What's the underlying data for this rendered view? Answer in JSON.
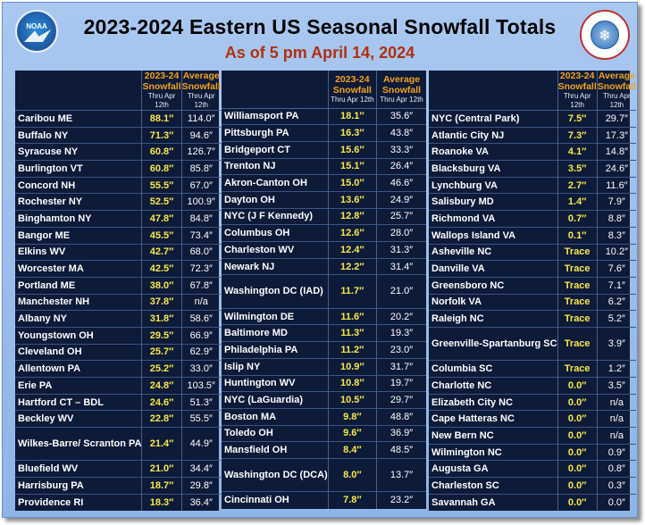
{
  "header": {
    "title": "2023-2024 Eastern US Seasonal Snowfall Totals",
    "subtitle": "As of 5 pm April 14, 2024",
    "logo_left_text": "NOAA",
    "logo_right_text": "National Weather Service"
  },
  "columns_header": {
    "current_l1": "2023-24",
    "current_l2": "Snowfall",
    "current_note": "Thru Apr 12th",
    "avg_l1": "Average",
    "avg_l2": "Snowfall",
    "avg_note": "Thru Apr 12th"
  },
  "table1": [
    {
      "city": "Caribou ME",
      "cur": "88.1″",
      "avg": "114.0″"
    },
    {
      "city": "Buffalo NY",
      "cur": "71.3″",
      "avg": "94.6″"
    },
    {
      "city": "Syracuse NY",
      "cur": "60.8″",
      "avg": "126.7″"
    },
    {
      "city": "Burlington VT",
      "cur": "60.8″",
      "avg": "85.8″"
    },
    {
      "city": "Concord NH",
      "cur": "55.5″",
      "avg": "67.0″"
    },
    {
      "city": "Rochester NY",
      "cur": "52.5″",
      "avg": "100.9″"
    },
    {
      "city": "Binghamton NY",
      "cur": "47.8″",
      "avg": "84.8″"
    },
    {
      "city": "Bangor ME",
      "cur": "45.5″",
      "avg": "73.4″"
    },
    {
      "city": "Elkins WV",
      "cur": "42.7″",
      "avg": "68.0″"
    },
    {
      "city": "Worcester MA",
      "cur": "42.5″",
      "avg": "72.3″"
    },
    {
      "city": "Portland ME",
      "cur": "38.0″",
      "avg": "67.8″"
    },
    {
      "city": "Manchester NH",
      "cur": "37.8″",
      "avg": "n/a"
    },
    {
      "city": "Albany NY",
      "cur": "31.8″",
      "avg": "58.6″"
    },
    {
      "city": "Youngstown OH",
      "cur": "29.5″",
      "avg": "66.9″"
    },
    {
      "city": "Cleveland OH",
      "cur": "25.7″",
      "avg": "62.9″"
    },
    {
      "city": "Allentown PA",
      "cur": "25.2″",
      "avg": "33.0″"
    },
    {
      "city": "Erie PA",
      "cur": "24.8″",
      "avg": "103.5″"
    },
    {
      "city": "Hartford CT – BDL",
      "cur": "24.6″",
      "avg": "51.3″"
    },
    {
      "city": "Beckley WV",
      "cur": "22.8″",
      "avg": "55.5″"
    },
    {
      "city": "Wilkes-Barre/ Scranton PA",
      "cur": "21.4″",
      "avg": "44.9″",
      "two": true
    },
    {
      "city": "Bluefield WV",
      "cur": "21.0″",
      "avg": "34.4″"
    },
    {
      "city": "Harrisburg PA",
      "cur": "18.7″",
      "avg": "29.8″"
    },
    {
      "city": "Providence RI",
      "cur": "18.3″",
      "avg": "36.4″"
    }
  ],
  "table2": [
    {
      "city": "Williamsport PA",
      "cur": "18.1″",
      "avg": "35.6″"
    },
    {
      "city": "Pittsburgh PA",
      "cur": "16.3″",
      "avg": "43.8″"
    },
    {
      "city": "Bridgeport CT",
      "cur": "15.6″",
      "avg": "33.3″"
    },
    {
      "city": "Trenton NJ",
      "cur": "15.1″",
      "avg": "26.4″"
    },
    {
      "city": "Akron-Canton OH",
      "cur": "15.0″",
      "avg": "46.6″"
    },
    {
      "city": "Dayton OH",
      "cur": "13.6″",
      "avg": "24.9″"
    },
    {
      "city": "NYC (J F Kennedy)",
      "cur": "12.8″",
      "avg": "25.7″"
    },
    {
      "city": "Columbus OH",
      "cur": "12.6″",
      "avg": "28.0″"
    },
    {
      "city": "Charleston WV",
      "cur": "12.4″",
      "avg": "31.3″"
    },
    {
      "city": "Newark NJ",
      "cur": "12.2″",
      "avg": "31.4″"
    },
    {
      "city": "Washington DC (IAD)",
      "cur": "11.7″",
      "avg": "21.0″",
      "two": true
    },
    {
      "city": "Wilmington DE",
      "cur": "11.6″",
      "avg": "20.2″"
    },
    {
      "city": "Baltimore MD",
      "cur": "11.3″",
      "avg": "19.3″"
    },
    {
      "city": "Philadelphia PA",
      "cur": "11.2″",
      "avg": "23.0″"
    },
    {
      "city": "Islip NY",
      "cur": "10.9″",
      "avg": "31.7″"
    },
    {
      "city": "Huntington WV",
      "cur": "10.8″",
      "avg": "19.7″"
    },
    {
      "city": "NYC (LaGuardia)",
      "cur": "10.5″",
      "avg": "29.7″"
    },
    {
      "city": "Boston MA",
      "cur": "9.8″",
      "avg": "48.8″"
    },
    {
      "city": "Toledo OH",
      "cur": "9.6″",
      "avg": "36.9″"
    },
    {
      "city": "Mansfield OH",
      "cur": "8.4″",
      "avg": "48.5″"
    },
    {
      "city": "Washington DC (DCA)",
      "cur": "8.0″",
      "avg": "13.7″",
      "two": true
    },
    {
      "city": "Cincinnati OH",
      "cur": "7.8″",
      "avg": "23.2″"
    }
  ],
  "table3": [
    {
      "city": "NYC (Central Park)",
      "cur": "7.5″",
      "avg": "29.7″"
    },
    {
      "city": "Atlantic City NJ",
      "cur": "7.3″",
      "avg": "17.3″"
    },
    {
      "city": "Roanoke VA",
      "cur": "4.1″",
      "avg": "14.8″"
    },
    {
      "city": "Blacksburg VA",
      "cur": "3.5″",
      "avg": "24.6″"
    },
    {
      "city": "Lynchburg VA",
      "cur": "2.7″",
      "avg": "11.6″"
    },
    {
      "city": "Salisbury MD",
      "cur": "1.4″",
      "avg": "7.9″"
    },
    {
      "city": "Richmond VA",
      "cur": "0.7″",
      "avg": "8.8″"
    },
    {
      "city": "Wallops Island VA",
      "cur": "0.1″",
      "avg": "8.3″"
    },
    {
      "city": "Asheville NC",
      "cur": "Trace",
      "avg": "10.2″"
    },
    {
      "city": "Danville VA",
      "cur": "Trace",
      "avg": "7.6″"
    },
    {
      "city": "Greensboro NC",
      "cur": "Trace",
      "avg": "7.1″"
    },
    {
      "city": "Norfolk VA",
      "cur": "Trace",
      "avg": "6.2″"
    },
    {
      "city": "Raleigh NC",
      "cur": "Trace",
      "avg": "5.2″"
    },
    {
      "city": "Greenville-Spartanburg SC",
      "cur": "Trace",
      "avg": "3.9″",
      "two": true
    },
    {
      "city": "Columbia SC",
      "cur": "Trace",
      "avg": "1.2″"
    },
    {
      "city": "Charlotte NC",
      "cur": "0.0″",
      "avg": "3.5″"
    },
    {
      "city": "Elizabeth City NC",
      "cur": "0.0″",
      "avg": "n/a"
    },
    {
      "city": "Cape Hatteras NC",
      "cur": "0.0″",
      "avg": "n/a"
    },
    {
      "city": "New Bern NC",
      "cur": "0.0″",
      "avg": "n/a"
    },
    {
      "city": "Wilmington NC",
      "cur": "0.0″",
      "avg": "0.9″"
    },
    {
      "city": "Augusta GA",
      "cur": "0.0″",
      "avg": "0.8″"
    },
    {
      "city": "Charleston SC",
      "cur": "0.0″",
      "avg": "0.3″"
    },
    {
      "city": "Savannah GA",
      "cur": "0.0″",
      "avg": "0.0″"
    }
  ]
}
